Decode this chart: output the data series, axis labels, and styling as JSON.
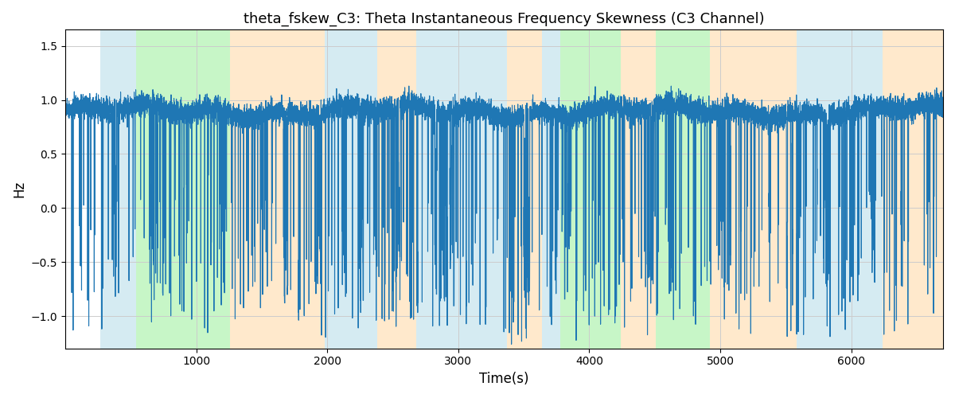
{
  "title": "theta_fskew_C3: Theta Instantaneous Frequency Skewness (C3 Channel)",
  "xlabel": "Time(s)",
  "ylabel": "Hz",
  "xlim": [
    0,
    6700
  ],
  "ylim": [
    -1.3,
    1.65
  ],
  "line_color": "#1f77b4",
  "line_width": 0.8,
  "bg_color": "white",
  "yticks": [
    -1.0,
    -0.5,
    0.0,
    0.5,
    1.0,
    1.5
  ],
  "xticks": [
    1000,
    2000,
    3000,
    4000,
    5000,
    6000
  ],
  "bands": [
    {
      "xstart": 270,
      "xend": 540,
      "color": "#add8e6",
      "alpha": 0.5
    },
    {
      "xstart": 540,
      "xend": 1260,
      "color": "#90ee90",
      "alpha": 0.5
    },
    {
      "xstart": 1260,
      "xend": 1980,
      "color": "#ffd59b",
      "alpha": 0.5
    },
    {
      "xstart": 1980,
      "xend": 2380,
      "color": "#add8e6",
      "alpha": 0.5
    },
    {
      "xstart": 2380,
      "xend": 2680,
      "color": "#ffd59b",
      "alpha": 0.5
    },
    {
      "xstart": 2680,
      "xend": 3370,
      "color": "#add8e6",
      "alpha": 0.5
    },
    {
      "xstart": 3370,
      "xend": 3640,
      "color": "#ffd59b",
      "alpha": 0.5
    },
    {
      "xstart": 3640,
      "xend": 3780,
      "color": "#add8e6",
      "alpha": 0.5
    },
    {
      "xstart": 3780,
      "xend": 4240,
      "color": "#90ee90",
      "alpha": 0.5
    },
    {
      "xstart": 4240,
      "xend": 4510,
      "color": "#ffd59b",
      "alpha": 0.5
    },
    {
      "xstart": 4510,
      "xend": 4920,
      "color": "#90ee90",
      "alpha": 0.5
    },
    {
      "xstart": 4920,
      "xend": 5580,
      "color": "#ffd59b",
      "alpha": 0.5
    },
    {
      "xstart": 5580,
      "xend": 6240,
      "color": "#add8e6",
      "alpha": 0.5
    },
    {
      "xstart": 6240,
      "xend": 6700,
      "color": "#ffd59b",
      "alpha": 0.5
    }
  ],
  "seed": 99,
  "n_points": 13400,
  "figsize": [
    12,
    5
  ],
  "dpi": 100
}
